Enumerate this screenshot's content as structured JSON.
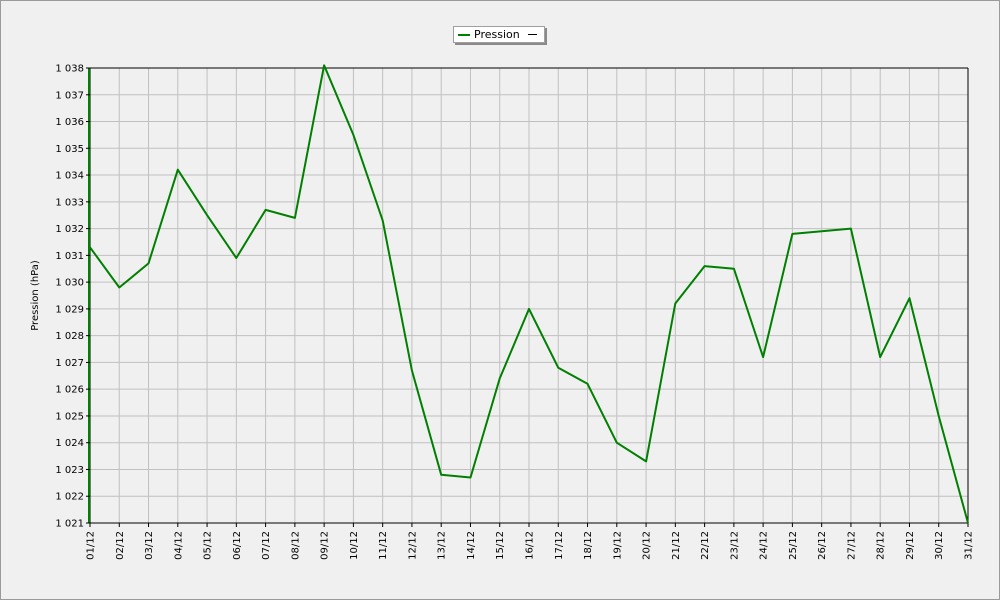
{
  "chart_data": {
    "type": "line",
    "title": "",
    "xlabel": "",
    "ylabel": "Pression (hPa)",
    "legend_position": "top-center",
    "grid": true,
    "colors": {
      "series": "#008000",
      "grid": "#c0c0c0",
      "plot_bg": "#f0f0f0"
    },
    "ylim": [
      1021,
      1038
    ],
    "yticks": [
      "1 021",
      "1 022",
      "1 023",
      "1 024",
      "1 025",
      "1 026",
      "1 027",
      "1 028",
      "1 029",
      "1 030",
      "1 031",
      "1 032",
      "1 033",
      "1 034",
      "1 035",
      "1 036",
      "1 037",
      "1 038"
    ],
    "categories": [
      "01/12",
      "02/12",
      "03/12",
      "04/12",
      "05/12",
      "06/12",
      "07/12",
      "08/12",
      "09/12",
      "10/12",
      "11/12",
      "12/12",
      "13/12",
      "14/12",
      "15/12",
      "16/12",
      "17/12",
      "18/12",
      "19/12",
      "20/12",
      "21/12",
      "22/12",
      "23/12",
      "24/12",
      "25/12",
      "26/12",
      "27/12",
      "28/12",
      "29/12",
      "30/12",
      "31/12"
    ],
    "series": [
      {
        "name": "Pression",
        "values": [
          1031.3,
          1029.8,
          1030.7,
          1034.2,
          1032.5,
          1030.9,
          1032.7,
          1032.4,
          1038.1,
          1035.5,
          1032.3,
          1026.7,
          1022.8,
          1022.7,
          1026.4,
          1029.0,
          1026.8,
          1026.2,
          1024.0,
          1023.3,
          1029.2,
          1030.6,
          1030.5,
          1027.2,
          1031.8,
          1031.9,
          1032.0,
          1027.2,
          1029.4,
          1025.0,
          1021.0
        ]
      }
    ]
  }
}
